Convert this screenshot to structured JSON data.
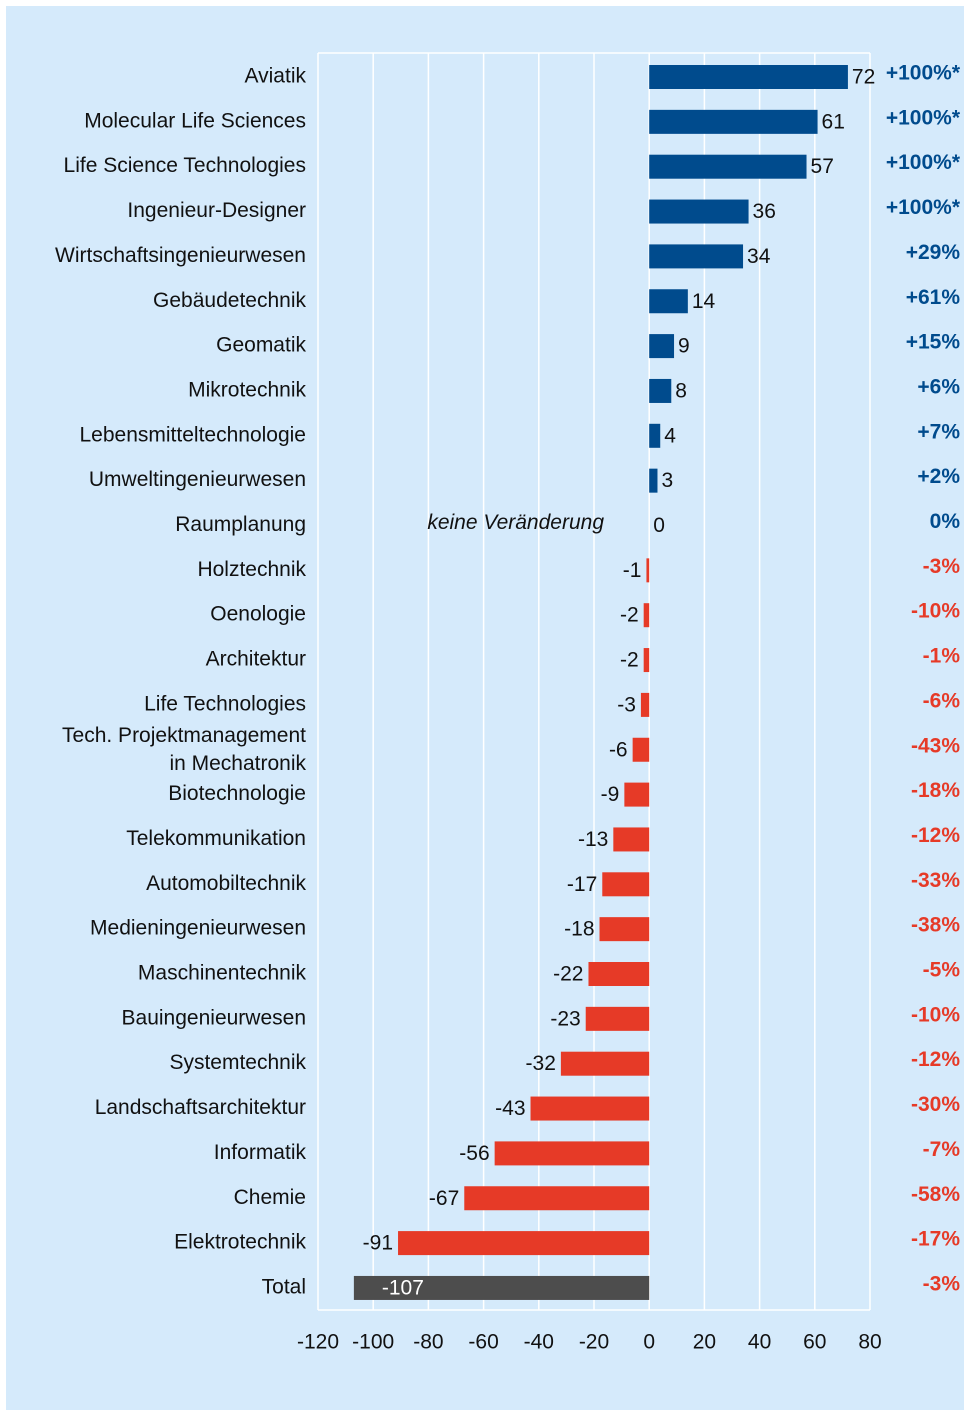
{
  "chart_data": {
    "type": "hbar",
    "categories": [
      "Aviatik",
      "Molecular Life Sciences",
      "Life Science Technologies",
      "Ingenieur-Designer",
      "Wirtschaftsingenieurwesen",
      "Gebäudetechnik",
      "Geomatik",
      "Mikrotechnik",
      "Lebensmitteltechnologie",
      "Umweltingenieurwesen",
      "Raumplanung",
      "Holztechnik",
      "Oenologie",
      "Architektur",
      "Life Technologies",
      "Tech. Projektmanagement\nin Mechatronik",
      "Biotechnologie",
      "Telekommunikation",
      "Automobiltechnik",
      "Medieningenieurwesen",
      "Maschinentechnik",
      "Bauingenieurwesen",
      "Systemtechnik",
      "Landschaftsarchitektur",
      "Informatik",
      "Chemie",
      "Elektrotechnik",
      "Total"
    ],
    "values": [
      72,
      61,
      57,
      36,
      34,
      14,
      9,
      8,
      4,
      3,
      0,
      -1,
      -2,
      -2,
      -3,
      -6,
      -9,
      -13,
      -17,
      -18,
      -22,
      -23,
      -32,
      -43,
      -56,
      -67,
      -91,
      -107
    ],
    "percent_labels": [
      "+100%*",
      "+100%*",
      "+100%*",
      "+100%*",
      "+29%",
      "+61%",
      "+15%",
      "+6%",
      "+7%",
      "+2%",
      "0%",
      "-3%",
      "-10%",
      "-1%",
      "-6%",
      "-43%",
      "-18%",
      "-12%",
      "-33%",
      "-38%",
      "-5%",
      "-10%",
      "-12%",
      "-30%",
      "-7%",
      "-58%",
      "-17%",
      "-3%"
    ],
    "bar_colors": [
      "#004b8d",
      "#004b8d",
      "#004b8d",
      "#004b8d",
      "#004b8d",
      "#004b8d",
      "#004b8d",
      "#004b8d",
      "#004b8d",
      "#004b8d",
      "#004b8d",
      "#e63a27",
      "#e63a27",
      "#e63a27",
      "#e63a27",
      "#e63a27",
      "#e63a27",
      "#e63a27",
      "#e63a27",
      "#e63a27",
      "#e63a27",
      "#e63a27",
      "#e63a27",
      "#e63a27",
      "#e63a27",
      "#e63a27",
      "#e63a27",
      "#4d4d4d"
    ],
    "percent_colors": [
      "#004b8d",
      "#004b8d",
      "#004b8d",
      "#004b8d",
      "#004b8d",
      "#004b8d",
      "#004b8d",
      "#004b8d",
      "#004b8d",
      "#004b8d",
      "#004b8d",
      "#e63a27",
      "#e63a27",
      "#e63a27",
      "#e63a27",
      "#e63a27",
      "#e63a27",
      "#e63a27",
      "#e63a27",
      "#e63a27",
      "#e63a27",
      "#e63a27",
      "#e63a27",
      "#e63a27",
      "#e63a27",
      "#e63a27",
      "#e63a27",
      "#e63a27"
    ],
    "annotation": {
      "text": "keine Veränderung",
      "category": "Raumplanung"
    },
    "xlim": [
      -120,
      80
    ],
    "xticks": [
      -120,
      -100,
      -80,
      -60,
      -40,
      -20,
      0,
      20,
      40,
      60,
      80
    ],
    "grid": true
  }
}
